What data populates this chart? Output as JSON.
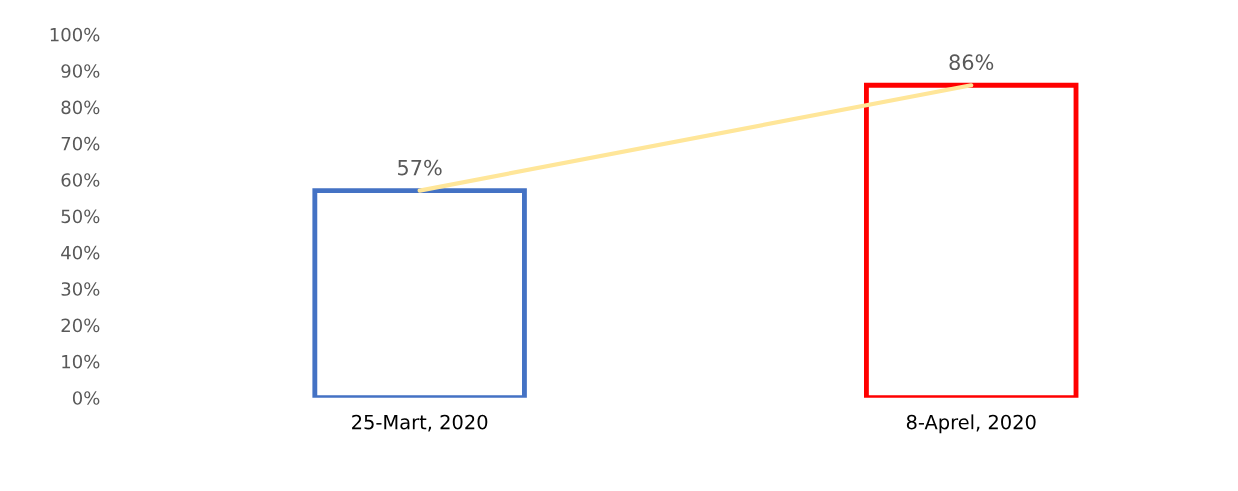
{
  "chart_data": {
    "type": "bar",
    "categories": [
      "25-Mart, 2020",
      "8-Aprel, 2020"
    ],
    "series": [
      {
        "colors": [
          "#4472c4",
          "#ff0000"
        ],
        "values": [
          57,
          86
        ],
        "value_labels": [
          "57%",
          "86%"
        ]
      },
      {
        "type": "line",
        "color": "#ffe699",
        "values": [
          57,
          86
        ]
      }
    ],
    "ylim": [
      0,
      100
    ],
    "yticks": [
      {
        "value": 0,
        "label": "0%"
      },
      {
        "value": 10,
        "label": "10%"
      },
      {
        "value": 20,
        "label": "20%"
      },
      {
        "value": 30,
        "label": "30%"
      },
      {
        "value": 40,
        "label": "40%"
      },
      {
        "value": 50,
        "label": "50%"
      },
      {
        "value": 60,
        "label": "60%"
      },
      {
        "value": 70,
        "label": "70%"
      },
      {
        "value": 80,
        "label": "80%"
      },
      {
        "value": 90,
        "label": "90%"
      },
      {
        "value": 100,
        "label": "100%"
      }
    ],
    "grid": false
  }
}
